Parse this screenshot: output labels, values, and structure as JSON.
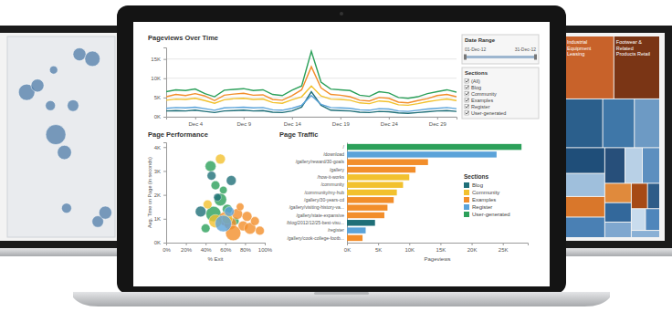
{
  "chart_data": [
    {
      "type": "line",
      "title": "Pageviews Over Time",
      "grid": true,
      "x": [
        1,
        2,
        3,
        4,
        5,
        6,
        7,
        8,
        9,
        10,
        11,
        12,
        13,
        14,
        15,
        16,
        17,
        18,
        19,
        20,
        21,
        22,
        23,
        24,
        25,
        26,
        27,
        28,
        29,
        30,
        31
      ],
      "xlim": [
        1,
        31
      ],
      "xticks": [
        {
          "value": 4,
          "label": "Dec 4"
        },
        {
          "value": 9,
          "label": "Dec 9"
        },
        {
          "value": 14,
          "label": "Dec 14"
        },
        {
          "value": 19,
          "label": "Dec 19"
        },
        {
          "value": 24,
          "label": "Dec 24"
        },
        {
          "value": 29,
          "label": "Dec 29"
        }
      ],
      "ylim": [
        0,
        18000
      ],
      "yticks": [
        {
          "value": 0,
          "label": "0K"
        },
        {
          "value": 5000,
          "label": "5K"
        },
        {
          "value": 10000,
          "label": "10K"
        },
        {
          "value": 15000,
          "label": "15K"
        }
      ],
      "series": [
        {
          "color": "#1f6f78",
          "values": [
            1500,
            1600,
            1500,
            1700,
            1400,
            1100,
            1500,
            1600,
            1700,
            1500,
            1600,
            1200,
            1100,
            1500,
            2500,
            6500,
            3000,
            1700,
            1600,
            1500,
            1200,
            1100,
            1400,
            1300,
            1000,
            900,
            1100,
            1300,
            1500,
            1600,
            1400
          ]
        },
        {
          "color": "#5ba3d9",
          "values": [
            2200,
            2400,
            2300,
            2500,
            2100,
            1700,
            2300,
            2400,
            2500,
            2300,
            2400,
            1800,
            1700,
            2200,
            3000,
            5500,
            3200,
            2400,
            2300,
            2200,
            1800,
            1700,
            2100,
            2000,
            1500,
            1400,
            1700,
            2000,
            2200,
            2400,
            2100
          ]
        },
        {
          "color": "#f2c12e",
          "values": [
            4300,
            4600,
            4500,
            4800,
            4200,
            3500,
            4400,
            4700,
            4800,
            4500,
            4600,
            3700,
            3500,
            4400,
            5200,
            8000,
            5400,
            4600,
            4500,
            4300,
            3600,
            3400,
            4100,
            3900,
            3100,
            3000,
            3400,
            3900,
            4300,
            4600,
            4200
          ]
        },
        {
          "color": "#f28e2b",
          "values": [
            5200,
            5800,
            5500,
            6000,
            5400,
            4200,
            5600,
            5900,
            6100,
            5600,
            5700,
            4500,
            4300,
            5500,
            7000,
            13000,
            7500,
            5800,
            5600,
            5200,
            4300,
            4100,
            5000,
            4800,
            3800,
            3600,
            4200,
            4700,
            5500,
            5800,
            5200
          ]
        },
        {
          "color": "#2ca05a",
          "values": [
            6500,
            7000,
            6800,
            7200,
            6000,
            5200,
            6900,
            7100,
            7300,
            6800,
            7000,
            5800,
            5500,
            6900,
            8000,
            17000,
            9000,
            7200,
            7000,
            6800,
            5600,
            5300,
            6500,
            6200,
            5000,
            4800,
            5200,
            6000,
            6500,
            7000,
            6400
          ]
        }
      ]
    },
    {
      "type": "scatter",
      "title": "Page Performance",
      "x_label": "% Exit",
      "y_label": "Avg. Time on Page (in seconds)",
      "xlim": [
        0,
        100
      ],
      "xticks": [
        {
          "value": 0,
          "label": "0%"
        },
        {
          "value": 20,
          "label": "20%"
        },
        {
          "value": 40,
          "label": "40%"
        },
        {
          "value": 60,
          "label": "60%"
        },
        {
          "value": 80,
          "label": "80%"
        },
        {
          "value": 100,
          "label": "100%"
        }
      ],
      "ylim": [
        0,
        4200
      ],
      "yticks": [
        {
          "value": 0,
          "label": "0K"
        },
        {
          "value": 1000,
          "label": "1K"
        },
        {
          "value": 2000,
          "label": "2K"
        },
        {
          "value": 3000,
          "label": "3K"
        },
        {
          "value": 4000,
          "label": "4K"
        }
      ],
      "series": [
        {
          "color": "#2ca05a",
          "x": [
            45,
            50,
            55,
            62,
            70,
            40,
            58,
            48
          ],
          "values": [
            3200,
            2400,
            1800,
            1400,
            900,
            600,
            2200,
            1200
          ],
          "size": [
            6,
            4,
            8,
            5,
            3,
            4,
            3,
            12
          ]
        },
        {
          "color": "#f28e2b",
          "x": [
            60,
            65,
            72,
            78,
            85,
            90,
            68,
            75,
            82,
            95
          ],
          "values": [
            1000,
            800,
            1200,
            700,
            600,
            900,
            400,
            1500,
            1100,
            500
          ],
          "size": [
            10,
            8,
            6,
            5,
            7,
            4,
            12,
            3,
            5,
            4
          ]
        },
        {
          "color": "#f2c12e",
          "x": [
            55,
            62,
            42,
            50
          ],
          "values": [
            3500,
            1000,
            1600,
            900
          ],
          "size": [
            5,
            6,
            4,
            9
          ]
        },
        {
          "color": "#5ba3d9",
          "x": [
            58,
            64
          ],
          "values": [
            800,
            1300
          ],
          "size": [
            14,
            5
          ]
        },
        {
          "color": "#1f6f78",
          "x": [
            46,
            52,
            66,
            35
          ],
          "values": [
            2800,
            1900,
            2600,
            1300
          ],
          "size": [
            4,
            3,
            5,
            6
          ]
        }
      ]
    },
    {
      "type": "bar",
      "orientation": "horizontal",
      "title": "Page Traffic",
      "x_label": "Pageviews",
      "legend": "right",
      "legend_title": "Sections",
      "categories": [
        "/",
        "/download",
        "/gallery/reward/30-goals",
        "/gallery",
        "/how-it-works",
        "/community",
        "/community/my-hub",
        "/gallery/30-years-cd",
        "/gallery/visiting-history-va...",
        "/gallery/state-expansive",
        "/blog/2012/12/25-best-visu...",
        "/register",
        "/gallery/cook-college-footb..."
      ],
      "xlim": [
        0,
        29000
      ],
      "xticks": [
        {
          "value": 0,
          "label": "0K"
        },
        {
          "value": 5000,
          "label": "5K"
        },
        {
          "value": 10000,
          "label": "10K"
        },
        {
          "value": 15000,
          "label": "15K"
        },
        {
          "value": 20000,
          "label": "20K"
        },
        {
          "value": 25000,
          "label": "25K"
        }
      ],
      "series": [
        {
          "name": "Blog",
          "color": "#1f6f78",
          "values": [
            null,
            null,
            null,
            null,
            null,
            null,
            null,
            null,
            null,
            null,
            4500,
            null,
            null
          ]
        },
        {
          "name": "Community",
          "color": "#f2c12e",
          "values": [
            null,
            null,
            null,
            null,
            10000,
            9000,
            8000,
            null,
            null,
            null,
            null,
            null,
            null
          ]
        },
        {
          "name": "Examples",
          "color": "#f28e2b",
          "values": [
            null,
            null,
            13000,
            11000,
            null,
            null,
            null,
            7500,
            6500,
            6000,
            null,
            null,
            2500
          ]
        },
        {
          "name": "Register",
          "color": "#5ba3d9",
          "values": [
            null,
            24000,
            null,
            null,
            null,
            null,
            null,
            null,
            null,
            null,
            null,
            3000,
            null
          ]
        },
        {
          "name": "User-generated",
          "color": "#2ca05a",
          "values": [
            28000,
            null,
            null,
            null,
            null,
            null,
            null,
            null,
            null,
            null,
            null,
            null,
            null
          ]
        }
      ]
    },
    {
      "type": "map",
      "tick_labels": false,
      "color": "#4f7ca8",
      "xlim": [
        60,
        160
      ],
      "ylim": [
        -45,
        45
      ],
      "x": [
        78,
        88,
        100,
        105,
        113,
        121,
        127,
        139,
        144,
        151,
        103,
        115
      ],
      "values": [
        20,
        23,
        14,
        1,
        -7,
        14,
        37,
        35,
        -38,
        -34,
        30,
        -32
      ],
      "size": [
        40,
        25,
        15,
        60,
        30,
        20,
        25,
        35,
        20,
        25,
        10,
        15
      ]
    },
    {
      "type": "treemap",
      "categories": [
        "Industrial Equipment Leasing",
        "Footwear & Related Products Retail",
        null,
        null,
        null,
        null,
        null,
        null,
        null,
        null,
        null,
        null,
        null,
        null,
        null,
        null,
        null,
        null,
        null,
        null
      ],
      "values": [
        30,
        28,
        18,
        15,
        12,
        10,
        9,
        8,
        8,
        7,
        6,
        6,
        5,
        5,
        4,
        4,
        3,
        3,
        3,
        2
      ],
      "colors": [
        "#c8622a",
        "#7a3515",
        "#2b5f8c",
        "#3f77a8",
        "#6d9ac4",
        "#1f4e79",
        "#9fbfdc",
        "#d9772b",
        "#4a80b4",
        "#274f7a",
        "#b8d0e6",
        "#5d8fbf",
        "#e08a3c",
        "#33689b",
        "#7fa7cf",
        "#a64a16",
        "#2e5c88",
        "#c9dced",
        "#4f86bb",
        "#8ab0d5"
      ]
    }
  ],
  "filters": {
    "date_range": {
      "title": "Date Range",
      "start": "01-Dec-12",
      "end": "31-Dec-12"
    },
    "sections": {
      "title": "Sections",
      "items": [
        "(All)",
        "Blog",
        "Community",
        "Examples",
        "Register",
        "User-generated"
      ]
    }
  }
}
